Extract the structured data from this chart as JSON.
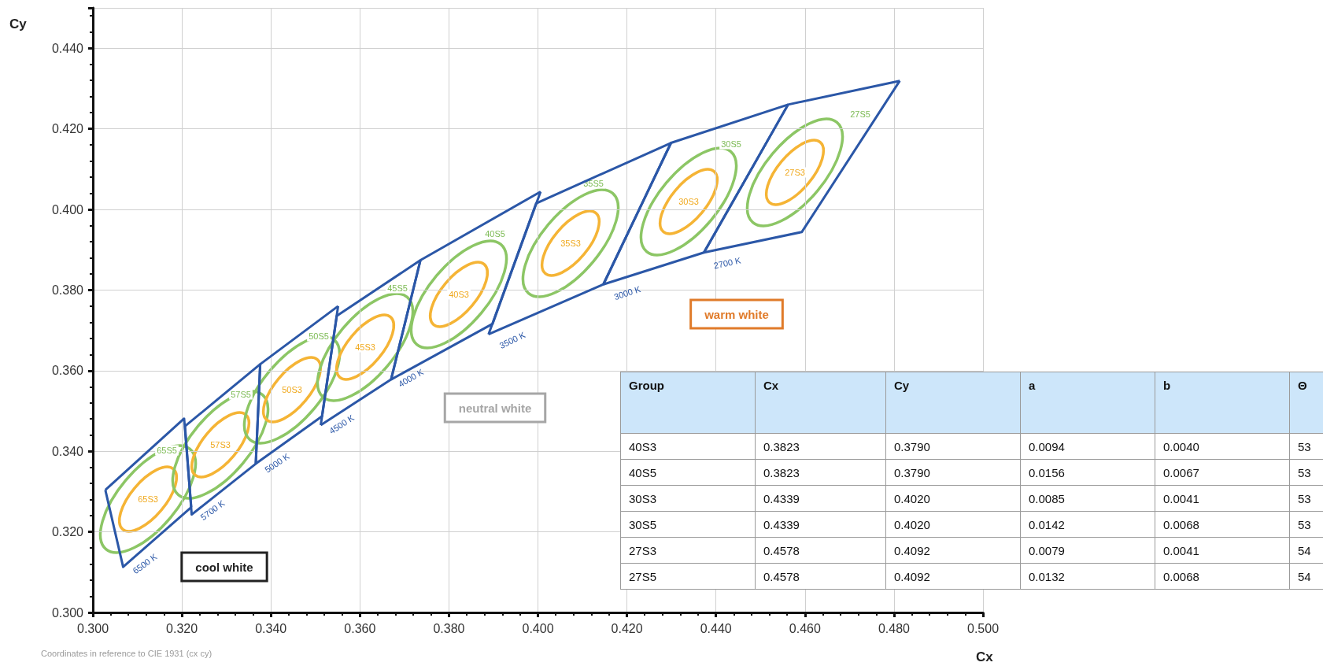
{
  "chart_data": [
    {
      "type": "line",
      "xlabel": "Cx",
      "ylabel": "Cy",
      "xlim": [
        0.3,
        0.5
      ],
      "ylim": [
        0.3,
        0.45
      ],
      "xticks": [
        {
          "value": 0.3,
          "label": "0.300"
        },
        {
          "value": 0.32,
          "label": "0.320"
        },
        {
          "value": 0.34,
          "label": "0.340"
        },
        {
          "value": 0.36,
          "label": "0.360"
        },
        {
          "value": 0.38,
          "label": "0.380"
        },
        {
          "value": 0.4,
          "label": "0.400"
        },
        {
          "value": 0.42,
          "label": "0.420"
        },
        {
          "value": 0.44,
          "label": "0.440"
        },
        {
          "value": 0.46,
          "label": "0.460"
        },
        {
          "value": 0.48,
          "label": "0.480"
        },
        {
          "value": 0.5,
          "label": "0.500"
        }
      ],
      "yticks": [
        {
          "value": 0.3,
          "label": "0.300"
        },
        {
          "value": 0.32,
          "label": "0.320"
        },
        {
          "value": 0.34,
          "label": "0.340"
        },
        {
          "value": 0.36,
          "label": "0.360"
        },
        {
          "value": 0.38,
          "label": "0.380"
        },
        {
          "value": 0.4,
          "label": "0.400"
        },
        {
          "value": 0.42,
          "label": "0.420"
        },
        {
          "value": 0.44,
          "label": "0.440"
        }
      ],
      "grid": true,
      "marker": "none",
      "series": [
        {
          "color": "#2b57a7",
          "x": [
            0.3028,
            0.3205,
            0.3221
          ],
          "values": [
            0.3304,
            0.3481,
            0.3261
          ]
        },
        {
          "color": "#2b57a7",
          "x": [
            0.3028,
            0.3068,
            0.3221
          ],
          "values": [
            0.3304,
            0.3113,
            0.3261
          ]
        },
        {
          "color": "#2b57a7",
          "x": [
            0.3207,
            0.3376
          ],
          "values": [
            0.3462,
            0.3616
          ]
        },
        {
          "color": "#2b57a7",
          "x": [
            0.3207,
            0.3222,
            0.3366,
            0.3376
          ],
          "values": [
            0.3462,
            0.3243,
            0.3369,
            0.3616
          ]
        },
        {
          "color": "#2b57a7",
          "x": [
            0.3366,
            0.3376,
            0.3551
          ],
          "values": [
            0.3369,
            0.3616,
            0.376
          ]
        },
        {
          "color": "#2b57a7",
          "x": [
            0.3366,
            0.3515,
            0.3551
          ],
          "values": [
            0.3369,
            0.3487,
            0.376
          ]
        },
        {
          "color": "#2b57a7",
          "x": [
            0.3512,
            0.3548,
            0.3736
          ],
          "values": [
            0.3465,
            0.3736,
            0.3874
          ]
        },
        {
          "color": "#2b57a7",
          "x": [
            0.3512,
            0.367,
            0.3736
          ],
          "values": [
            0.3465,
            0.3578,
            0.3874
          ]
        },
        {
          "color": "#2b57a7",
          "x": [
            0.367,
            0.3736,
            0.4006
          ],
          "values": [
            0.3578,
            0.3874,
            0.4044
          ]
        },
        {
          "color": "#2b57a7",
          "x": [
            0.367,
            0.3898,
            0.4006
          ],
          "values": [
            0.3578,
            0.3716,
            0.4044
          ]
        },
        {
          "color": "#2b57a7",
          "x": [
            0.3889,
            0.3996,
            0.4299
          ],
          "values": [
            0.369,
            0.4015,
            0.4165
          ]
        },
        {
          "color": "#2b57a7",
          "x": [
            0.3889,
            0.4147,
            0.4299
          ],
          "values": [
            0.369,
            0.3814,
            0.4165
          ]
        },
        {
          "color": "#2b57a7",
          "x": [
            0.4147,
            0.4299,
            0.4562
          ],
          "values": [
            0.3814,
            0.4165,
            0.426
          ]
        },
        {
          "color": "#2b57a7",
          "x": [
            0.4147,
            0.4373,
            0.4562
          ],
          "values": [
            0.3814,
            0.3893,
            0.426
          ]
        },
        {
          "color": "#2b57a7",
          "x": [
            0.4373,
            0.4562,
            0.4813
          ],
          "values": [
            0.3893,
            0.426,
            0.4319
          ]
        },
        {
          "color": "#2b57a7",
          "x": [
            0.4373,
            0.4593,
            0.4813
          ],
          "values": [
            0.3893,
            0.3944,
            0.4319
          ]
        }
      ],
      "annotations": [
        "Coordinates in reference to CIE 1931 (cx cy)",
        "cool white",
        "neutral white",
        "warm white",
        "6500 K",
        "5700 K",
        "5000 K",
        "4500 K",
        "4000 K",
        "3500 K",
        "3000 K",
        "2700 K",
        "65S3",
        "65S5",
        "57S3",
        "57S5",
        "50S3",
        "50S5",
        "45S3",
        "45S5",
        "40S3",
        "40S5",
        "35S3",
        "35S5",
        "30S3",
        "30S5",
        "27S3",
        "27S5"
      ]
    },
    {
      "type": "other",
      "ylabel": "Group",
      "categories": [
        "Cx",
        "Cy",
        "a",
        "b",
        "Θ"
      ],
      "y_categories": [
        "40S3",
        "40S5",
        "30S3",
        "30S5",
        "27S3",
        "27S5"
      ],
      "cell_labels": [
        [
          "0.3823",
          "0.3790",
          "0.0094",
          "0.0040",
          "53"
        ],
        [
          "0.3823",
          "0.3790",
          "0.0156",
          "0.0067",
          "53"
        ],
        [
          "0.4339",
          "0.4020",
          "0.0085",
          "0.0041",
          "53"
        ],
        [
          "0.4339",
          "0.4020",
          "0.0142",
          "0.0068",
          "53"
        ],
        [
          "0.4578",
          "0.4092",
          "0.0079",
          "0.0041",
          "54"
        ],
        [
          "0.4578",
          "0.4092",
          "0.0132",
          "0.0068",
          "54"
        ]
      ]
    }
  ]
}
